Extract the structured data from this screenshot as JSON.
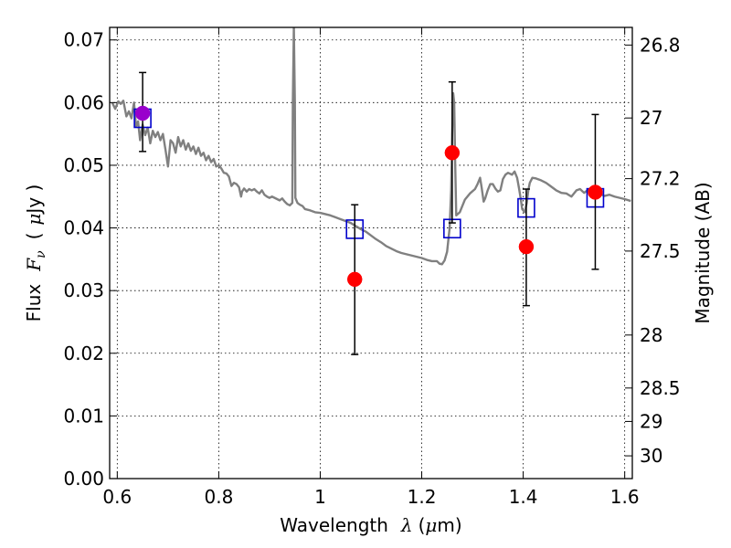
{
  "chart_data": {
    "type": "scatter",
    "xlabel": {
      "pre": "Wavelength",
      "sym": "λ",
      "unit_open": "(",
      "unit_mu": "μ",
      "unit_rest": "m)"
    },
    "ylabel": {
      "pre": "Flux",
      "sym": "F",
      "sub": "ν",
      "open": "(",
      "mu": "μ",
      "rest": "Jy )"
    },
    "y2label": "Magnitude (AB)",
    "xlim": [
      0.585,
      1.615
    ],
    "ylim": [
      0.0,
      0.072
    ],
    "grid": true,
    "x_ticks": [
      {
        "v": 0.6,
        "label": "0.6"
      },
      {
        "v": 0.8,
        "label": "0.8"
      },
      {
        "v": 1.0,
        "label": "1"
      },
      {
        "v": 1.2,
        "label": "1.2"
      },
      {
        "v": 1.4,
        "label": "1.4"
      },
      {
        "v": 1.6,
        "label": "1.6"
      }
    ],
    "y_ticks": [
      {
        "v": 0.0,
        "label": "0.00"
      },
      {
        "v": 0.01,
        "label": "0.01"
      },
      {
        "v": 0.02,
        "label": "0.02"
      },
      {
        "v": 0.03,
        "label": "0.03"
      },
      {
        "v": 0.04,
        "label": "0.04"
      },
      {
        "v": 0.05,
        "label": "0.05"
      },
      {
        "v": 0.06,
        "label": "0.06"
      },
      {
        "v": 0.07,
        "label": "0.07"
      }
    ],
    "mag_ticks": [
      {
        "mag": 26.8,
        "label": "26.8"
      },
      {
        "mag": 27.0,
        "label": "27"
      },
      {
        "mag": 27.2,
        "label": "27.2"
      },
      {
        "mag": 27.5,
        "label": "27.5"
      },
      {
        "mag": 28.0,
        "label": "28"
      },
      {
        "mag": 28.5,
        "label": "28.5"
      },
      {
        "mag": 29.0,
        "label": "29"
      },
      {
        "mag": 30.0,
        "label": "30"
      }
    ],
    "series": [
      {
        "kind": "line",
        "color": "#808080",
        "points": [
          [
            0.59,
            0.06
          ],
          [
            0.596,
            0.059
          ],
          [
            0.602,
            0.0602
          ],
          [
            0.607,
            0.0598
          ],
          [
            0.612,
            0.0603
          ],
          [
            0.618,
            0.0578
          ],
          [
            0.623,
            0.0586
          ],
          [
            0.628,
            0.0575
          ],
          [
            0.633,
            0.06
          ],
          [
            0.637,
            0.0562
          ],
          [
            0.641,
            0.057
          ],
          [
            0.645,
            0.054
          ],
          [
            0.65,
            0.0565
          ],
          [
            0.655,
            0.0548
          ],
          [
            0.66,
            0.056
          ],
          [
            0.665,
            0.0535
          ],
          [
            0.67,
            0.0555
          ],
          [
            0.675,
            0.0545
          ],
          [
            0.68,
            0.0553
          ],
          [
            0.685,
            0.054
          ],
          [
            0.69,
            0.055
          ],
          [
            0.695,
            0.0525
          ],
          [
            0.7,
            0.0498
          ],
          [
            0.705,
            0.054
          ],
          [
            0.71,
            0.0535
          ],
          [
            0.715,
            0.052
          ],
          [
            0.72,
            0.0545
          ],
          [
            0.725,
            0.053
          ],
          [
            0.73,
            0.054
          ],
          [
            0.735,
            0.0525
          ],
          [
            0.74,
            0.0535
          ],
          [
            0.745,
            0.0523
          ],
          [
            0.75,
            0.053
          ],
          [
            0.755,
            0.0518
          ],
          [
            0.76,
            0.0528
          ],
          [
            0.765,
            0.0515
          ],
          [
            0.77,
            0.052
          ],
          [
            0.775,
            0.0508
          ],
          [
            0.78,
            0.0515
          ],
          [
            0.785,
            0.0505
          ],
          [
            0.79,
            0.051
          ],
          [
            0.795,
            0.0498
          ],
          [
            0.8,
            0.05
          ],
          [
            0.805,
            0.0495
          ],
          [
            0.81,
            0.0488
          ],
          [
            0.815,
            0.0487
          ],
          [
            0.82,
            0.0482
          ],
          [
            0.825,
            0.0467
          ],
          [
            0.83,
            0.0472
          ],
          [
            0.835,
            0.047
          ],
          [
            0.84,
            0.0465
          ],
          [
            0.844,
            0.045
          ],
          [
            0.846,
            0.0458
          ],
          [
            0.85,
            0.0463
          ],
          [
            0.855,
            0.0458
          ],
          [
            0.86,
            0.0462
          ],
          [
            0.865,
            0.046
          ],
          [
            0.87,
            0.0462
          ],
          [
            0.875,
            0.0458
          ],
          [
            0.88,
            0.0455
          ],
          [
            0.885,
            0.046
          ],
          [
            0.89,
            0.0453
          ],
          [
            0.895,
            0.045
          ],
          [
            0.9,
            0.0448
          ],
          [
            0.905,
            0.045
          ],
          [
            0.91,
            0.0448
          ],
          [
            0.915,
            0.0446
          ],
          [
            0.92,
            0.0444
          ],
          [
            0.925,
            0.0447
          ],
          [
            0.93,
            0.0442
          ],
          [
            0.935,
            0.0438
          ],
          [
            0.94,
            0.0436
          ],
          [
            0.945,
            0.044
          ],
          [
            0.946,
            0.06
          ],
          [
            0.948,
            0.072
          ],
          [
            0.95,
            0.06
          ],
          [
            0.951,
            0.0448
          ],
          [
            0.955,
            0.044
          ],
          [
            0.96,
            0.0437
          ],
          [
            0.965,
            0.0435
          ],
          [
            0.97,
            0.043
          ],
          [
            0.98,
            0.0428
          ],
          [
            0.99,
            0.0425
          ],
          [
            1.0,
            0.0424
          ],
          [
            1.01,
            0.0422
          ],
          [
            1.02,
            0.042
          ],
          [
            1.03,
            0.0417
          ],
          [
            1.04,
            0.0414
          ],
          [
            1.05,
            0.0411
          ],
          [
            1.06,
            0.0408
          ],
          [
            1.07,
            0.0403
          ],
          [
            1.08,
            0.0398
          ],
          [
            1.09,
            0.0394
          ],
          [
            1.1,
            0.0388
          ],
          [
            1.11,
            0.0382
          ],
          [
            1.12,
            0.0377
          ],
          [
            1.13,
            0.0371
          ],
          [
            1.14,
            0.0367
          ],
          [
            1.15,
            0.0363
          ],
          [
            1.16,
            0.036
          ],
          [
            1.17,
            0.0358
          ],
          [
            1.18,
            0.0356
          ],
          [
            1.19,
            0.0354
          ],
          [
            1.2,
            0.0352
          ],
          [
            1.21,
            0.0349
          ],
          [
            1.22,
            0.0347
          ],
          [
            1.23,
            0.0347
          ],
          [
            1.235,
            0.0343
          ],
          [
            1.24,
            0.0342
          ],
          [
            1.245,
            0.0348
          ],
          [
            1.25,
            0.0362
          ],
          [
            1.255,
            0.04
          ],
          [
            1.258,
            0.046
          ],
          [
            1.26,
            0.055
          ],
          [
            1.262,
            0.0615
          ],
          [
            1.264,
            0.06
          ],
          [
            1.266,
            0.05
          ],
          [
            1.268,
            0.042
          ],
          [
            1.275,
            0.0425
          ],
          [
            1.285,
            0.0445
          ],
          [
            1.295,
            0.0455
          ],
          [
            1.305,
            0.0462
          ],
          [
            1.31,
            0.047
          ],
          [
            1.315,
            0.048
          ],
          [
            1.318,
            0.0465
          ],
          [
            1.322,
            0.0442
          ],
          [
            1.325,
            0.0447
          ],
          [
            1.33,
            0.046
          ],
          [
            1.335,
            0.047
          ],
          [
            1.34,
            0.047
          ],
          [
            1.345,
            0.0463
          ],
          [
            1.35,
            0.0458
          ],
          [
            1.355,
            0.046
          ],
          [
            1.36,
            0.0478
          ],
          [
            1.365,
            0.0485
          ],
          [
            1.37,
            0.0488
          ],
          [
            1.378,
            0.0485
          ],
          [
            1.383,
            0.049
          ],
          [
            1.388,
            0.048
          ],
          [
            1.392,
            0.0462
          ],
          [
            1.395,
            0.0447
          ],
          [
            1.398,
            0.043
          ],
          [
            1.403,
            0.0425
          ],
          [
            1.407,
            0.044
          ],
          [
            1.41,
            0.046
          ],
          [
            1.413,
            0.0472
          ],
          [
            1.418,
            0.048
          ],
          [
            1.425,
            0.0479
          ],
          [
            1.435,
            0.0476
          ],
          [
            1.445,
            0.0472
          ],
          [
            1.455,
            0.0466
          ],
          [
            1.465,
            0.046
          ],
          [
            1.475,
            0.0456
          ],
          [
            1.485,
            0.0455
          ],
          [
            1.495,
            0.045
          ],
          [
            1.505,
            0.046
          ],
          [
            1.512,
            0.0462
          ],
          [
            1.52,
            0.0456
          ],
          [
            1.53,
            0.0462
          ],
          [
            1.54,
            0.046
          ],
          [
            1.55,
            0.0455
          ],
          [
            1.56,
            0.0451
          ],
          [
            1.57,
            0.0453
          ],
          [
            1.58,
            0.045
          ],
          [
            1.59,
            0.0448
          ],
          [
            1.6,
            0.0446
          ],
          [
            1.612,
            0.0443
          ]
        ]
      },
      {
        "kind": "open-squares",
        "color": "#0000cc",
        "points": [
          [
            0.65,
            0.0575
          ],
          [
            1.068,
            0.0398
          ],
          [
            1.26,
            0.0399
          ],
          [
            1.406,
            0.0432
          ],
          [
            1.542,
            0.0448
          ]
        ]
      },
      {
        "kind": "errorbar-points",
        "color": "#ff0000",
        "points": [
          {
            "x": 1.068,
            "y": 0.0318,
            "ylo": 0.0198,
            "yhi": 0.0437
          },
          {
            "x": 1.26,
            "y": 0.052,
            "ylo": 0.0408,
            "yhi": 0.0633
          },
          {
            "x": 1.406,
            "y": 0.037,
            "ylo": 0.0276,
            "yhi": 0.0462
          },
          {
            "x": 1.542,
            "y": 0.0457,
            "ylo": 0.0334,
            "yhi": 0.0581
          }
        ]
      },
      {
        "kind": "errorbar-points",
        "color": "#9900cc",
        "points": [
          {
            "x": 0.65,
            "y": 0.0583,
            "ylo": 0.0522,
            "yhi": 0.0648
          }
        ]
      }
    ]
  }
}
